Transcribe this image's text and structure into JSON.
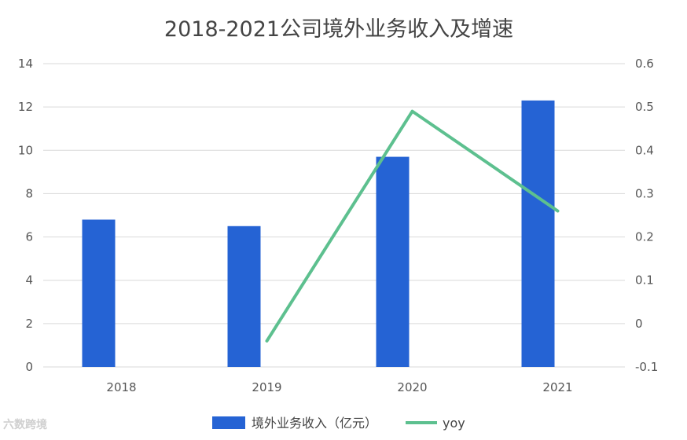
{
  "chart_data": {
    "type": "bar",
    "title": "2018-2021公司境外业务收入及增速",
    "categories": [
      "2018",
      "2019",
      "2020",
      "2021"
    ],
    "series": [
      {
        "name": "境外业务收入（亿元）",
        "type": "bar",
        "axis": "left",
        "color": "#2563d4",
        "values": [
          6.8,
          6.5,
          9.7,
          12.3
        ]
      },
      {
        "name": "yoy",
        "type": "line",
        "axis": "right",
        "color": "#5dc08f",
        "values": [
          null,
          -0.04,
          0.49,
          0.26
        ]
      }
    ],
    "y_left": {
      "min": 0,
      "max": 14,
      "ticks": [
        "0",
        "2",
        "4",
        "6",
        "8",
        "10",
        "12",
        "14"
      ]
    },
    "y_right": {
      "min": -0.1,
      "max": 0.6,
      "ticks": [
        "-0.1",
        "0",
        "0.1",
        "0.2",
        "0.3",
        "0.4",
        "0.5",
        "0.6"
      ]
    },
    "grid": true,
    "legend_position": "bottom"
  },
  "watermark": "六数跨境"
}
